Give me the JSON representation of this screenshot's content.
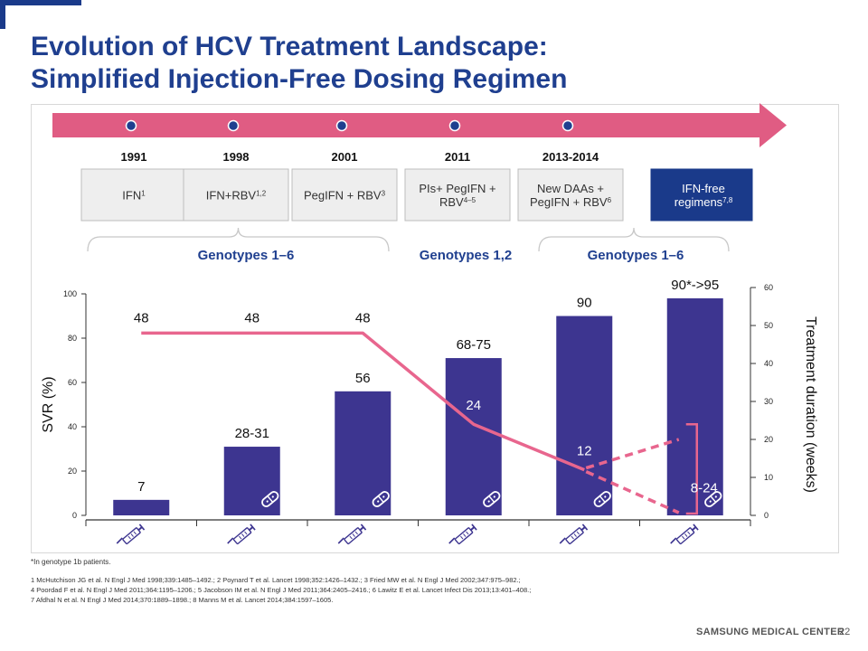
{
  "slide": {
    "title_line1": "Evolution of HCV Treatment Landscape:",
    "title_line2": "Simplified Injection-Free Dosing Regimen",
    "footnote": "*In genotype 1b patients.",
    "references": [
      "1 McHutchison JG et al. N Engl J Med 1998;339:1485–1492.; 2 Poynard T et al. Lancet 1998;352:1426–1432.; 3 Fried MW et al. N Engl J Med 2002;347:975–982.;",
      "4 Poordad F et al. N Engl J Med 2011;364:1195–1206.; 5 Jacobson IM et al. N Engl J Med 2011;364:2405–2416.; 6 Lawitz E et al. Lancet Infect Dis 2013;13:401–408.;",
      "7 Afdhal N et al. N Engl J Med 2014;370:1889–1898.; 8 Manns M et al. Lancet 2014;384:1597–1605."
    ],
    "brand": "SAMSUNG MEDICAL CENTER",
    "page_number": "22"
  },
  "timeline": {
    "years": [
      "1991",
      "1998",
      "2001",
      "2011",
      "2013-2014"
    ],
    "regimens": [
      {
        "text": "IFN",
        "sup": "1",
        "highlight": false
      },
      {
        "text": "IFN+RBV",
        "sup": "1,2",
        "highlight": false
      },
      {
        "text": "PegIFN + RBV",
        "sup": "3",
        "highlight": false
      },
      {
        "text": "PIs+ PegIFN + RBV",
        "sup": "4–5",
        "highlight": false
      },
      {
        "text": "New DAAs + PegIFN + RBV",
        "sup": "6",
        "highlight": false
      },
      {
        "text": "IFN-free regimens",
        "sup": "7,8",
        "highlight": true
      }
    ],
    "genotype_groups": [
      "Genotypes 1–6",
      "Genotypes 1,2",
      "Genotypes 1–6"
    ]
  },
  "colors": {
    "bar": "#3d3590",
    "line": "#e8668e",
    "arrow": "#e05c83",
    "dot": "#1f3f8f",
    "title": "#1f3f8f",
    "genotype": "#1f3f8f",
    "highlight_box": "#1a3a8a"
  },
  "icons": [
    "syringe-icon",
    "pill-icon"
  ],
  "chart_data": {
    "type": "bar",
    "categories": [
      "IFN",
      "IFN+RBV",
      "PegIFN + RBV",
      "PIs+ PegIFN + RBV",
      "New DAAs + PegIFN + RBV",
      "IFN-free regimens"
    ],
    "values": [
      7,
      31,
      56,
      71,
      90,
      98
    ],
    "bar_labels": [
      "7",
      "28-31",
      "56",
      "68-75",
      "90",
      "90*->95"
    ],
    "ylabel": "SVR (%)",
    "ylim": [
      0,
      100
    ],
    "yticks": [
      0,
      20,
      40,
      60,
      80,
      100
    ],
    "secondary": {
      "name": "Treatment duration (weeks)",
      "ylabel": "Treatment duration (weeks)",
      "ylim": [
        0,
        60
      ],
      "yticks": [
        0,
        10,
        20,
        30,
        40,
        50,
        60
      ],
      "values": [
        48,
        48,
        48,
        24,
        12
      ],
      "labels": [
        "48",
        "48",
        "48",
        "24",
        "12"
      ],
      "range_label": "8-24",
      "range": [
        8,
        24
      ]
    },
    "grid": false
  }
}
